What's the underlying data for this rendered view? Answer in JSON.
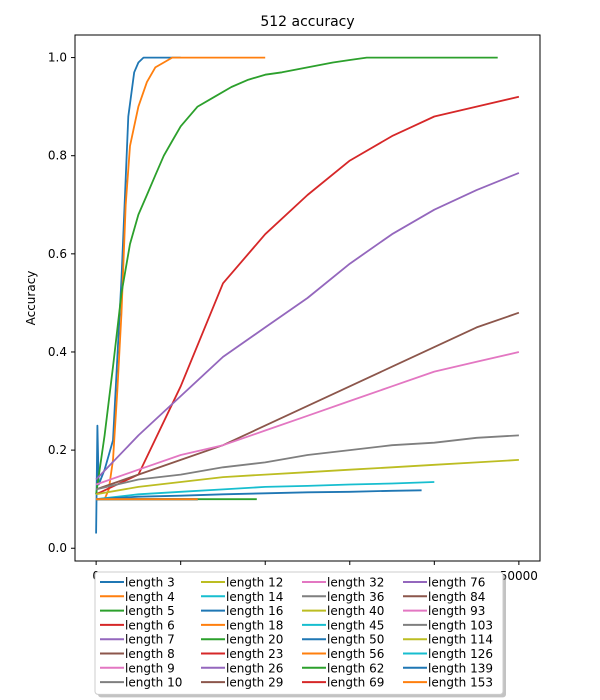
{
  "chart_data": {
    "type": "line",
    "title": "512 accuracy",
    "xlabel": "",
    "ylabel": "Accuracy",
    "xlim": [
      -2500,
      52500
    ],
    "ylim": [
      -0.026,
      1.046
    ],
    "x_ticks": [
      0,
      10000,
      20000,
      30000,
      40000,
      50000
    ],
    "x_tick_labels": [
      "0",
      "",
      "",
      "",
      "",
      "50000"
    ],
    "y_ticks": [
      0.0,
      0.2,
      0.4,
      0.6,
      0.8,
      1.0
    ],
    "y_tick_labels": [
      "0.0",
      "0.2",
      "0.4",
      "0.6",
      "0.8",
      "1.0"
    ],
    "grid": false,
    "legend": {
      "placement": "bottom-center",
      "ncol": 4,
      "frame": true,
      "shadow": true
    },
    "series": [
      {
        "name": "length 3",
        "color": "#1f77b4",
        "x": [
          0,
          150,
          300,
          1000,
          2000,
          3000,
          3800,
          4500,
          5000,
          5600,
          6500,
          8000,
          10000
        ],
        "y": [
          0.03,
          0.25,
          0.13,
          0.16,
          0.22,
          0.55,
          0.88,
          0.97,
          0.99,
          1.0,
          1.0,
          1.0,
          1.0
        ]
      },
      {
        "name": "length 4",
        "color": "#ff7f0e",
        "x": [
          0,
          1000,
          1500,
          2000,
          2500,
          3000,
          3500,
          4000,
          5000,
          6000,
          7000,
          8000,
          9000,
          10000,
          12000,
          15000,
          20000
        ],
        "y": [
          0.1,
          0.1,
          0.12,
          0.18,
          0.32,
          0.48,
          0.7,
          0.82,
          0.9,
          0.95,
          0.98,
          0.99,
          1.0,
          1.0,
          1.0,
          1.0,
          1.0
        ]
      },
      {
        "name": "length 5",
        "color": "#2ca02c",
        "x": [
          0,
          1000,
          2000,
          3000,
          4000,
          5000,
          6000,
          7000,
          8000,
          9000,
          10000,
          12000,
          14000,
          16000,
          18000,
          20000,
          22000,
          25000,
          28000,
          30000,
          32000,
          35000,
          40000,
          45000,
          47500
        ],
        "y": [
          0.11,
          0.23,
          0.37,
          0.52,
          0.62,
          0.68,
          0.72,
          0.76,
          0.8,
          0.83,
          0.86,
          0.9,
          0.92,
          0.94,
          0.955,
          0.965,
          0.97,
          0.98,
          0.99,
          0.995,
          1.0,
          1.0,
          1.0,
          1.0,
          1.0
        ]
      },
      {
        "name": "length 6",
        "color": "#d62728",
        "x": [
          0,
          5000,
          10000,
          15000,
          20000,
          25000,
          30000,
          35000,
          40000,
          45000,
          50000
        ],
        "y": [
          0.11,
          0.15,
          0.33,
          0.54,
          0.64,
          0.72,
          0.79,
          0.84,
          0.88,
          0.9,
          0.92
        ]
      },
      {
        "name": "length 7",
        "color": "#9467bd",
        "x": [
          0,
          5000,
          10000,
          15000,
          20000,
          25000,
          30000,
          35000,
          40000,
          45000,
          50000
        ],
        "y": [
          0.14,
          0.23,
          0.31,
          0.39,
          0.45,
          0.51,
          0.58,
          0.64,
          0.69,
          0.73,
          0.765
        ]
      },
      {
        "name": "length 8",
        "color": "#8c564b",
        "x": [
          0,
          5000,
          10000,
          15000,
          20000,
          25000,
          30000,
          35000,
          40000,
          45000,
          50000
        ],
        "y": [
          0.12,
          0.15,
          0.18,
          0.21,
          0.25,
          0.29,
          0.33,
          0.37,
          0.41,
          0.45,
          0.48
        ]
      },
      {
        "name": "length 9",
        "color": "#e377c2",
        "x": [
          0,
          5000,
          10000,
          15000,
          20000,
          25000,
          30000,
          35000,
          40000,
          45000,
          50000
        ],
        "y": [
          0.13,
          0.16,
          0.19,
          0.21,
          0.24,
          0.27,
          0.3,
          0.33,
          0.36,
          0.38,
          0.4
        ]
      },
      {
        "name": "length 10",
        "color": "#7f7f7f",
        "x": [
          0,
          5000,
          10000,
          15000,
          20000,
          25000,
          30000,
          35000,
          40000,
          45000,
          50000
        ],
        "y": [
          0.12,
          0.14,
          0.15,
          0.165,
          0.175,
          0.19,
          0.2,
          0.21,
          0.215,
          0.225,
          0.23
        ]
      },
      {
        "name": "length 12",
        "color": "#bcbd22",
        "x": [
          0,
          5000,
          10000,
          15000,
          20000,
          25000,
          30000,
          35000,
          40000,
          45000,
          50000
        ],
        "y": [
          0.11,
          0.125,
          0.135,
          0.145,
          0.15,
          0.155,
          0.16,
          0.165,
          0.17,
          0.175,
          0.18
        ]
      },
      {
        "name": "length 14",
        "color": "#17becf",
        "x": [
          0,
          5000,
          10000,
          15000,
          20000,
          25000,
          30000,
          35000,
          40000
        ],
        "y": [
          0.1,
          0.11,
          0.115,
          0.12,
          0.125,
          0.127,
          0.13,
          0.132,
          0.135
        ]
      },
      {
        "name": "length 16",
        "color": "#1f77b4",
        "x": [
          0,
          5000,
          10000,
          15000,
          20000,
          25000,
          30000,
          35000,
          38500
        ],
        "y": [
          0.1,
          0.105,
          0.107,
          0.11,
          0.112,
          0.114,
          0.115,
          0.117,
          0.118
        ]
      },
      {
        "name": "length 18",
        "color": "#ff7f0e",
        "x": [
          0,
          2000,
          4000,
          6000,
          8000,
          9500
        ],
        "y": [
          0.1,
          0.1,
          0.1,
          0.1,
          0.1,
          0.1
        ]
      },
      {
        "name": "length 20",
        "color": "#2ca02c",
        "x": [
          0,
          4000,
          8000,
          12000,
          16000,
          19000
        ],
        "y": [
          0.1,
          0.1,
          0.1,
          0.1,
          0.1,
          0.1
        ]
      },
      {
        "name": "length 23",
        "color": "#d62728",
        "x": [
          0,
          3000,
          6000,
          9000,
          12000
        ],
        "y": [
          0.1,
          0.1,
          0.1,
          0.1,
          0.1
        ]
      },
      {
        "name": "length 26",
        "color": "#9467bd",
        "x": [
          0,
          3000,
          6000,
          9000,
          12000
        ],
        "y": [
          0.1,
          0.1,
          0.1,
          0.1,
          0.1
        ]
      },
      {
        "name": "length 29",
        "color": "#8c564b",
        "x": [
          0,
          3000,
          6000,
          9000,
          12000
        ],
        "y": [
          0.1,
          0.1,
          0.1,
          0.1,
          0.1
        ]
      },
      {
        "name": "length 32",
        "color": "#e377c2",
        "x": [
          0,
          3000,
          6000,
          9000,
          12000
        ],
        "y": [
          0.1,
          0.1,
          0.1,
          0.1,
          0.1
        ]
      },
      {
        "name": "length 36",
        "color": "#7f7f7f",
        "x": [
          0,
          3000,
          6000,
          9000,
          12000
        ],
        "y": [
          0.1,
          0.1,
          0.1,
          0.1,
          0.1
        ]
      },
      {
        "name": "length 40",
        "color": "#bcbd22",
        "x": [
          0,
          3000,
          6000,
          9000,
          12000
        ],
        "y": [
          0.1,
          0.1,
          0.1,
          0.1,
          0.1
        ]
      },
      {
        "name": "length 45",
        "color": "#17becf",
        "x": [
          0,
          3000,
          6000,
          9000,
          12000
        ],
        "y": [
          0.1,
          0.1,
          0.1,
          0.1,
          0.1
        ]
      },
      {
        "name": "length 50",
        "color": "#1f77b4",
        "x": [
          0,
          3000,
          6000,
          9000,
          12000
        ],
        "y": [
          0.1,
          0.1,
          0.1,
          0.1,
          0.1
        ]
      },
      {
        "name": "length 56",
        "color": "#ff7f0e",
        "x": [
          0,
          3000,
          6000,
          9000,
          12000
        ],
        "y": [
          0.1,
          0.1,
          0.1,
          0.1,
          0.1
        ]
      },
      {
        "name": "length 62",
        "color": "#2ca02c",
        "x": [
          0,
          3000,
          6000,
          9000,
          12000
        ],
        "y": [
          0.1,
          0.1,
          0.1,
          0.1,
          0.1
        ]
      },
      {
        "name": "length 69",
        "color": "#d62728",
        "x": [
          0,
          3000,
          6000,
          9000,
          12000
        ],
        "y": [
          0.1,
          0.1,
          0.1,
          0.1,
          0.1
        ]
      },
      {
        "name": "length 76",
        "color": "#9467bd",
        "x": [
          0,
          3000,
          6000,
          9000,
          12000
        ],
        "y": [
          0.1,
          0.1,
          0.1,
          0.1,
          0.1
        ]
      },
      {
        "name": "length 84",
        "color": "#8c564b",
        "x": [
          0,
          3000,
          6000,
          9000,
          12000
        ],
        "y": [
          0.1,
          0.1,
          0.1,
          0.1,
          0.1
        ]
      },
      {
        "name": "length 93",
        "color": "#e377c2",
        "x": [
          0,
          3000,
          6000,
          9000,
          12000
        ],
        "y": [
          0.1,
          0.1,
          0.1,
          0.1,
          0.1
        ]
      },
      {
        "name": "length 103",
        "color": "#7f7f7f",
        "x": [
          0,
          3000,
          6000,
          9000,
          12000
        ],
        "y": [
          0.1,
          0.1,
          0.1,
          0.1,
          0.1
        ]
      },
      {
        "name": "length 114",
        "color": "#bcbd22",
        "x": [
          0,
          3000,
          6000,
          9000,
          12000
        ],
        "y": [
          0.1,
          0.1,
          0.1,
          0.1,
          0.1
        ]
      },
      {
        "name": "length 126",
        "color": "#17becf",
        "x": [
          0,
          3000,
          6000,
          9000,
          12000
        ],
        "y": [
          0.1,
          0.1,
          0.1,
          0.1,
          0.1
        ]
      },
      {
        "name": "length 139",
        "color": "#1f77b4",
        "x": [
          0,
          3000,
          6000,
          9000,
          12000
        ],
        "y": [
          0.1,
          0.1,
          0.1,
          0.1,
          0.1
        ]
      },
      {
        "name": "length 153",
        "color": "#ff7f0e",
        "x": [
          0,
          3000,
          6000,
          9000,
          12000
        ],
        "y": [
          0.1,
          0.1,
          0.1,
          0.1,
          0.1
        ]
      }
    ]
  }
}
